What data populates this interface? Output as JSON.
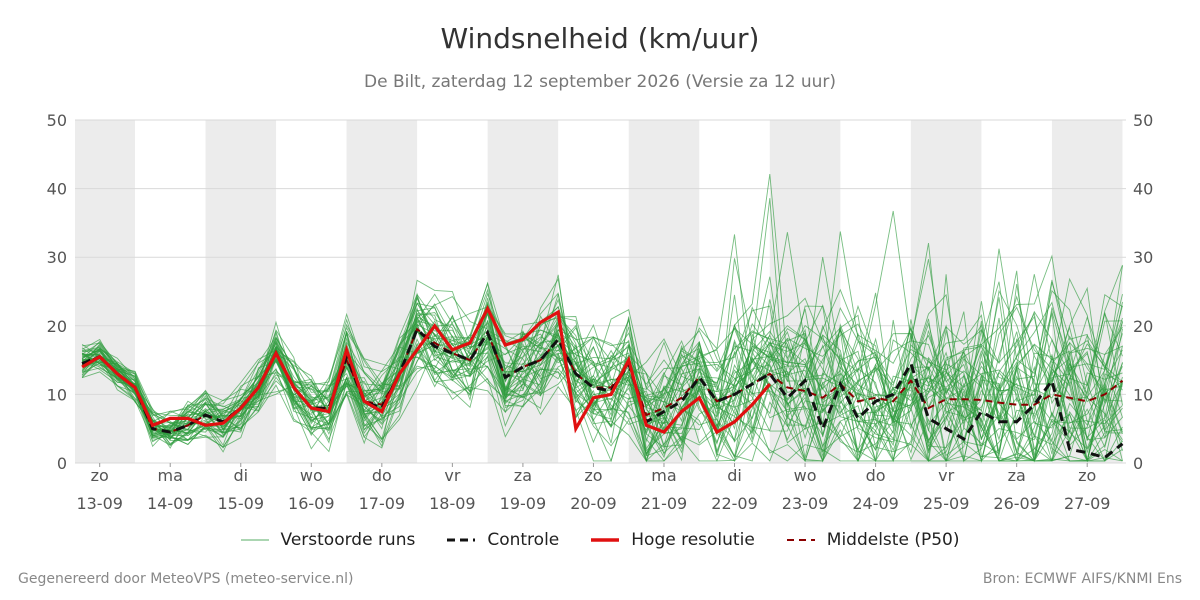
{
  "title": "Windsnelheid (km/uur)",
  "subtitle": "De Bilt, zaterdag 12 september 2026 (Versie za 12 uur)",
  "footer_left": "Gegenereerd door MeteoVPS (meteo-service.nl)",
  "footer_right": "Bron: ECMWF AIFS/KNMI Ens",
  "legend": [
    {
      "label": "Verstoorde runs",
      "color": "#2e9b3e",
      "style": "thin"
    },
    {
      "label": "Controle",
      "color": "#111111",
      "style": "dashed"
    },
    {
      "label": "Hoge resolutie",
      "color": "#e01010",
      "style": "thick"
    },
    {
      "label": "Middelste (P50)",
      "color": "#8b0000",
      "style": "dashed"
    }
  ],
  "chart_data": {
    "type": "line",
    "ylim": [
      0,
      50
    ],
    "y_ticks": [
      0,
      10,
      20,
      30,
      40,
      50
    ],
    "x_range_days": [
      -0.35,
      14.55
    ],
    "x_ticks": [
      {
        "day": "zo",
        "date": "13-09"
      },
      {
        "day": "ma",
        "date": "14-09"
      },
      {
        "day": "di",
        "date": "15-09"
      },
      {
        "day": "wo",
        "date": "16-09"
      },
      {
        "day": "do",
        "date": "17-09"
      },
      {
        "day": "vr",
        "date": "18-09"
      },
      {
        "day": "za",
        "date": "19-09"
      },
      {
        "day": "zo",
        "date": "20-09"
      },
      {
        "day": "ma",
        "date": "21-09"
      },
      {
        "day": "di",
        "date": "22-09"
      },
      {
        "day": "wo",
        "date": "23-09"
      },
      {
        "day": "do",
        "date": "24-09"
      },
      {
        "day": "vr",
        "date": "25-09"
      },
      {
        "day": "za",
        "date": "26-09"
      },
      {
        "day": "zo",
        "date": "27-09"
      }
    ],
    "shaded_days": [
      0,
      2,
      4,
      6,
      8,
      10,
      12,
      14
    ],
    "step_days": 0.25,
    "x_start": -0.25,
    "hoge_resolutie": [
      14,
      15.5,
      13,
      11,
      5.5,
      6.5,
      6.5,
      5.5,
      5.8,
      8,
      11,
      16,
      11,
      8,
      7.5,
      16.5,
      9,
      7.5,
      13,
      16.5,
      20,
      16.5,
      17.5,
      22.5,
      17.2,
      18,
      20.5,
      22,
      5,
      9.5,
      10,
      15,
      5.5,
      4.5,
      7.5,
      9.5,
      4.5,
      6,
      8.5,
      11.5
    ],
    "controle": [
      14.5,
      15.5,
      13,
      11,
      5,
      4.5,
      5.5,
      7,
      6,
      8,
      11,
      16,
      11,
      8,
      8,
      15.5,
      9,
      8,
      13,
      19.5,
      17,
      16,
      15,
      19,
      12.5,
      14,
      15,
      18,
      13,
      11,
      10.5,
      14.5,
      6,
      7.5,
      9,
      12.5,
      9,
      10,
      11.5,
      13,
      9.5,
      12,
      5,
      11.5,
      6.5,
      9,
      10,
      14.5,
      6.5,
      5,
      3.5,
      7.5,
      6,
      6,
      8.5,
      12,
      2,
      1.5,
      0.8,
      2.8
    ],
    "middelste": [
      14.5,
      15.5,
      13,
      11,
      5,
      4.5,
      5.5,
      7,
      6,
      8,
      11,
      16,
      11,
      8,
      8,
      15,
      9,
      8.5,
      13,
      19.5,
      17.5,
      16,
      15,
      19,
      12.5,
      14,
      15,
      18,
      13,
      11,
      11,
      14.5,
      7,
      8,
      9.5,
      12.5,
      9,
      10,
      11.5,
      13,
      11,
      10.5,
      9.5,
      11.5,
      9,
      9.5,
      9,
      12,
      8,
      9.3,
      9.3,
      9.2,
      8.8,
      8.5,
      8.5,
      10,
      9.5,
      9,
      10,
      12
    ]
  }
}
